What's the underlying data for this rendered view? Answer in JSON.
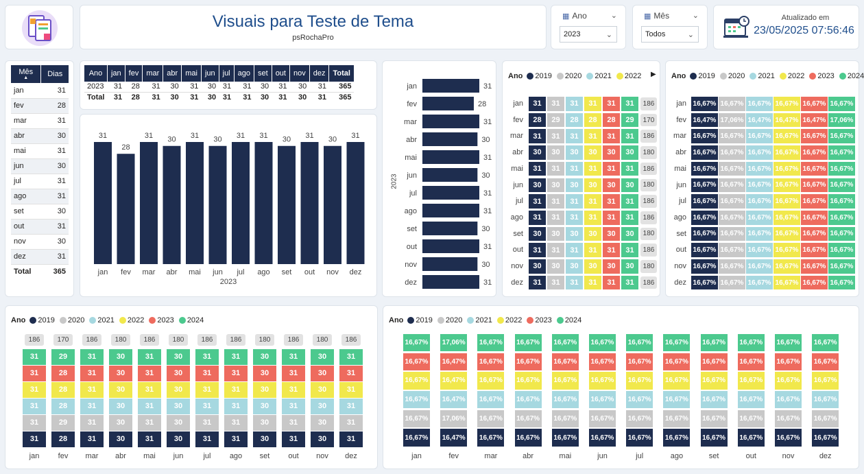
{
  "header": {
    "title": "Visuais para Teste de Tema",
    "subtitle": "psRochaPro"
  },
  "slicers": {
    "ano": {
      "label": "Ano",
      "value": "2023"
    },
    "mes": {
      "label": "Mês",
      "value": "Todos"
    }
  },
  "updated": {
    "label": "Atualizado em",
    "value": "23/05/2025 07:56:46"
  },
  "colors": {
    "navy": "#1e2d4f",
    "gray": "#c8c8c8",
    "lightblue": "#a6d8e0",
    "yellow": "#f1e84c",
    "red": "#ee6b5e",
    "green": "#4cc98e"
  },
  "months": [
    "jan",
    "fev",
    "mar",
    "abr",
    "mai",
    "jun",
    "jul",
    "ago",
    "set",
    "out",
    "nov",
    "dez"
  ],
  "days2023": [
    31,
    28,
    31,
    30,
    31,
    30,
    31,
    31,
    30,
    31,
    30,
    31
  ],
  "monthTable": {
    "header_month": "Mês",
    "header_days": "Dias",
    "total_label": "Total",
    "total": "365"
  },
  "yearTable": {
    "header_year": "Ano",
    "header_total": "Total",
    "year": "2023",
    "total_label": "Total",
    "total": "365"
  },
  "columnChart": {
    "xlabel": "2023"
  },
  "barChart": {
    "ylabel": "2023"
  },
  "years": [
    "2019",
    "2020",
    "2021",
    "2022",
    "2023",
    "2024"
  ],
  "yearLegendTitle": "Ano",
  "matrixDays": {
    "2019": [
      31,
      28,
      31,
      30,
      31,
      30,
      31,
      31,
      30,
      31,
      30,
      31
    ],
    "2020": [
      31,
      29,
      31,
      30,
      31,
      30,
      31,
      31,
      30,
      31,
      30,
      31
    ],
    "2021": [
      31,
      28,
      31,
      30,
      31,
      30,
      31,
      31,
      30,
      31,
      30,
      31
    ],
    "2022": [
      31,
      28,
      31,
      30,
      31,
      30,
      31,
      31,
      30,
      31,
      30,
      31
    ],
    "2023": [
      31,
      28,
      31,
      30,
      31,
      30,
      31,
      31,
      30,
      31,
      30,
      31
    ],
    "2024": [
      31,
      29,
      31,
      30,
      31,
      30,
      31,
      31,
      30,
      31,
      30,
      31
    ]
  },
  "totals": [
    186,
    170,
    186,
    180,
    186,
    180,
    186,
    186,
    180,
    186,
    180,
    186
  ],
  "pct": {
    "2019": [
      "16,67%",
      "16,47%",
      "16,67%",
      "16,67%",
      "16,67%",
      "16,67%",
      "16,67%",
      "16,67%",
      "16,67%",
      "16,67%",
      "16,67%",
      "16,67%"
    ],
    "2020": [
      "16,67%",
      "17,06%",
      "16,67%",
      "16,67%",
      "16,67%",
      "16,67%",
      "16,67%",
      "16,67%",
      "16,67%",
      "16,67%",
      "16,67%",
      "16,67%"
    ],
    "2021": [
      "16,67%",
      "16,47%",
      "16,67%",
      "16,67%",
      "16,67%",
      "16,67%",
      "16,67%",
      "16,67%",
      "16,67%",
      "16,67%",
      "16,67%",
      "16,67%"
    ],
    "2022": [
      "16,67%",
      "16,47%",
      "16,67%",
      "16,67%",
      "16,67%",
      "16,67%",
      "16,67%",
      "16,67%",
      "16,67%",
      "16,67%",
      "16,67%",
      "16,67%"
    ],
    "2023": [
      "16,67%",
      "16,47%",
      "16,67%",
      "16,67%",
      "16,67%",
      "16,67%",
      "16,67%",
      "16,67%",
      "16,67%",
      "16,67%",
      "16,67%",
      "16,67%"
    ],
    "2024": [
      "16,67%",
      "17,06%",
      "16,67%",
      "16,67%",
      "16,67%",
      "16,67%",
      "16,67%",
      "16,67%",
      "16,67%",
      "16,67%",
      "16,67%",
      "16,67%"
    ]
  },
  "chart_data": [
    {
      "type": "bar",
      "categories": [
        "jan",
        "fev",
        "mar",
        "abr",
        "mai",
        "jun",
        "jul",
        "ago",
        "set",
        "out",
        "nov",
        "dez"
      ],
      "values": [
        31,
        28,
        31,
        30,
        31,
        30,
        31,
        31,
        30,
        31,
        30,
        31
      ],
      "xlabel": "2023"
    },
    {
      "type": "bar",
      "orientation": "horizontal",
      "categories": [
        "jan",
        "fev",
        "mar",
        "abr",
        "mai",
        "jun",
        "jul",
        "ago",
        "set",
        "out",
        "nov",
        "dez"
      ],
      "values": [
        31,
        28,
        31,
        30,
        31,
        30,
        31,
        31,
        30,
        31,
        30,
        31
      ],
      "ylabel": "2023"
    }
  ]
}
